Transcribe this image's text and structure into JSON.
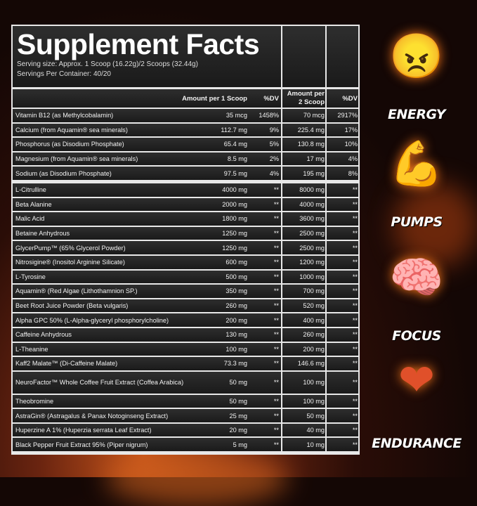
{
  "title": "Supplement Facts",
  "serving_size": "Serving size: Approx. 1 Scoop (16.22g)/2 Scoops (32.44g)",
  "servings_per_container": "Servings Per Container: 40/20",
  "headers": {
    "amount1": "Amount per 1 Scoop",
    "dv1": "%DV",
    "amount2": "Amount per 2 Scoop",
    "dv2": "%DV"
  },
  "vitamins": [
    {
      "name": "Vitamin B12 (as Methylcobalamin)",
      "a1": "35 mcg",
      "d1": "1458%",
      "a2": "70 mcg",
      "d2": "2917%"
    },
    {
      "name": "Calcium (from Aquamin® sea minerals)",
      "a1": "112.7 mg",
      "d1": "9%",
      "a2": "225.4 mg",
      "d2": "17%"
    },
    {
      "name": "Phosphorus (as Disodium Phosphate)",
      "a1": "65.4 mg",
      "d1": "5%",
      "a2": "130.8 mg",
      "d2": "10%"
    },
    {
      "name": "Magnesium (from Aquamin® sea minerals)",
      "a1": "8.5 mg",
      "d1": "2%",
      "a2": "17 mg",
      "d2": "4%"
    },
    {
      "name": "Sodium (as Disodium Phosphate)",
      "a1": "97.5 mg",
      "d1": "4%",
      "a2": "195 mg",
      "d2": "8%"
    }
  ],
  "ingredients": [
    {
      "name": "L-Citrulline",
      "a1": "4000 mg",
      "d1": "**",
      "a2": "8000 mg",
      "d2": "**"
    },
    {
      "name": "Beta Alanine",
      "a1": "2000 mg",
      "d1": "**",
      "a2": "4000 mg",
      "d2": "**"
    },
    {
      "name": "Malic Acid",
      "a1": "1800 mg",
      "d1": "**",
      "a2": "3600 mg",
      "d2": "**"
    },
    {
      "name": "Betaine Anhydrous",
      "a1": "1250 mg",
      "d1": "**",
      "a2": "2500 mg",
      "d2": "**"
    },
    {
      "name": "GlycerPump™ (65% Glycerol Powder)",
      "a1": "1250 mg",
      "d1": "**",
      "a2": "2500 mg",
      "d2": "**"
    },
    {
      "name": "Nitrosigine® (Inositol Arginine Silicate)",
      "a1": "600 mg",
      "d1": "**",
      "a2": "1200 mg",
      "d2": "**"
    },
    {
      "name": "L-Tyrosine",
      "a1": "500 mg",
      "d1": "**",
      "a2": "1000 mg",
      "d2": "**"
    },
    {
      "name": "Aquamin® (Red Algae (Lithothamnion SP.)",
      "a1": "350 mg",
      "d1": "**",
      "a2": "700 mg",
      "d2": "**"
    },
    {
      "name": "Beet Root Juice Powder (Beta vulgaris)",
      "a1": "260 mg",
      "d1": "**",
      "a2": "520 mg",
      "d2": "**"
    },
    {
      "name": "Alpha GPC 50% (L-Alpha-glyceryl phosphorylcholine)",
      "a1": "200 mg",
      "d1": "**",
      "a2": "400 mg",
      "d2": "**"
    },
    {
      "name": "Caffeine Anhydrous",
      "a1": "130 mg",
      "d1": "**",
      "a2": "260 mg",
      "d2": "**"
    },
    {
      "name": "L-Theanine",
      "a1": "100 mg",
      "d1": "**",
      "a2": "200 mg",
      "d2": "**"
    },
    {
      "name": "Kaff2 Malate™ (Di-Caffeine Malate)",
      "a1": "73.3 mg",
      "d1": "**",
      "a2": "146.6 mg",
      "d2": "**"
    },
    {
      "name": "NeuroFactor™ Whole Coffee Fruit Extract (Coffea Arabica)",
      "a1": "50 mg",
      "d1": "**",
      "a2": "100 mg",
      "d2": "**"
    },
    {
      "name": "Theobromine",
      "a1": "50 mg",
      "d1": "**",
      "a2": "100 mg",
      "d2": "**"
    },
    {
      "name": "AstraGin® (Astragalus & Panax Notoginseng Extract)",
      "a1": "25 mg",
      "d1": "**",
      "a2": "50 mg",
      "d2": "**"
    },
    {
      "name": "Huperzine A 1% (Huperzia serrata Leaf Extract)",
      "a1": "20 mg",
      "d1": "**",
      "a2": "40 mg",
      "d2": "**"
    },
    {
      "name": "Black Pepper Fruit Extract 95% (Piper nigrum)",
      "a1": "5 mg",
      "d1": "**",
      "a2": "10 mg",
      "d2": "**"
    }
  ],
  "benefits": [
    {
      "label": "ENERGY",
      "icon": "glowing-eyes-face-icon"
    },
    {
      "label": "PUMPS",
      "icon": "flexed-arm-icon"
    },
    {
      "label": "FOCUS",
      "icon": "brain-icon"
    },
    {
      "label": "ENDURANCE",
      "icon": "heart-icon"
    }
  ],
  "colors": {
    "background": "#140705",
    "fire": "#c2531a",
    "panel": "#1f1f1f",
    "lines": "#e8e8e8"
  }
}
